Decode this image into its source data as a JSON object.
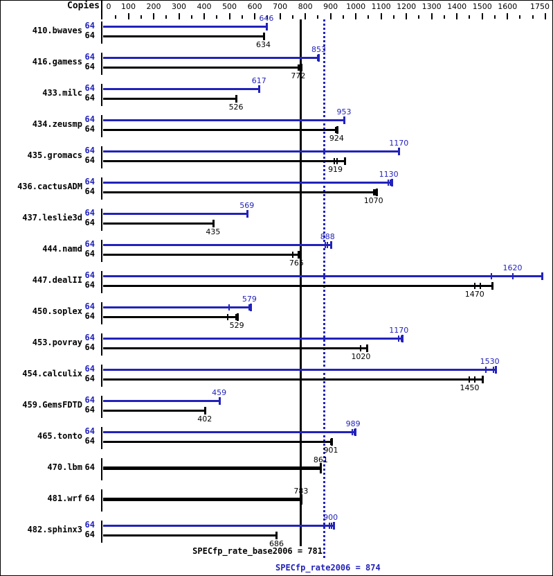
{
  "chart_data": {
    "type": "bar",
    "orientation": "horizontal",
    "axis": {
      "label": "Copies",
      "min": 0,
      "max": 1750,
      "minor_step": 50,
      "major_tick_values": [
        0,
        100,
        200,
        300,
        400,
        500,
        600,
        700,
        800,
        900,
        1000,
        1100,
        1200,
        1300,
        1400,
        1500,
        1600,
        1750
      ]
    },
    "series": [
      {
        "name": "peak",
        "color": "#2222bb"
      },
      {
        "name": "base",
        "color": "#000000"
      }
    ],
    "benchmarks": [
      {
        "name": "410.bwaves",
        "rows": [
          {
            "series": "peak",
            "copies": "64",
            "value": 646,
            "marks": [
              646
            ],
            "end": 646
          },
          {
            "series": "base",
            "copies": "64",
            "value": 634,
            "marks": [
              634
            ],
            "end": 634
          }
        ]
      },
      {
        "name": "416.gamess",
        "rows": [
          {
            "series": "peak",
            "copies": "64",
            "value": 853,
            "marks": [
              849,
              853
            ],
            "end": 853
          },
          {
            "series": "base",
            "copies": "64",
            "value": 772,
            "marks": [
              772,
              779
            ],
            "end": 783
          }
        ]
      },
      {
        "name": "433.milc",
        "rows": [
          {
            "series": "peak",
            "copies": "64",
            "value": 617,
            "marks": [
              617
            ],
            "end": 617
          },
          {
            "series": "base",
            "copies": "64",
            "value": 526,
            "marks": [
              526
            ],
            "end": 526
          }
        ]
      },
      {
        "name": "434.zeusmp",
        "rows": [
          {
            "series": "peak",
            "copies": "64",
            "value": 953,
            "marks": [
              953
            ],
            "end": 953
          },
          {
            "series": "base",
            "copies": "64",
            "value": 924,
            "marks": [
              920,
              924
            ],
            "end": 925
          }
        ]
      },
      {
        "name": "435.gromacs",
        "rows": [
          {
            "series": "peak",
            "copies": "64",
            "value": 1170,
            "marks": [
              1170
            ],
            "end": 1170
          },
          {
            "series": "base",
            "copies": "64",
            "value": 919,
            "marks": [
              916,
              927
            ],
            "end": 955
          }
        ]
      },
      {
        "name": "436.cactusADM",
        "rows": [
          {
            "series": "peak",
            "copies": "64",
            "value": 1130,
            "marks": [
              1128,
              1137
            ],
            "end": 1142
          },
          {
            "series": "base",
            "copies": "64",
            "value": 1070,
            "marks": [
              1070,
              1077
            ],
            "end": 1083
          }
        ]
      },
      {
        "name": "437.leslie3d",
        "rows": [
          {
            "series": "peak",
            "copies": "64",
            "value": 569,
            "marks": [
              569
            ],
            "end": 569
          },
          {
            "series": "base",
            "copies": "64",
            "value": 435,
            "marks": [
              435
            ],
            "end": 435
          }
        ]
      },
      {
        "name": "444.namd",
        "rows": [
          {
            "series": "peak",
            "copies": "64",
            "value": 888,
            "marks": [
              878,
              888
            ],
            "end": 900
          },
          {
            "series": "base",
            "copies": "64",
            "value": 765,
            "marks": [
              750
            ],
            "end": 772
          }
        ]
      },
      {
        "name": "447.dealII",
        "rows": [
          {
            "series": "peak",
            "copies": "64",
            "value": 1620,
            "marks": [
              1537,
              1620
            ],
            "end": 1735
          },
          {
            "series": "base",
            "copies": "64",
            "value": 1470,
            "marks": [
              1470,
              1492
            ],
            "end": 1540
          }
        ]
      },
      {
        "name": "450.soplex",
        "rows": [
          {
            "series": "peak",
            "copies": "64",
            "value": 579,
            "marks": [
              499,
              579
            ],
            "end": 582
          },
          {
            "series": "base",
            "copies": "64",
            "value": 529,
            "marks": [
              492,
              526
            ],
            "end": 530
          }
        ]
      },
      {
        "name": "453.povray",
        "rows": [
          {
            "series": "peak",
            "copies": "64",
            "value": 1170,
            "marks": [
              1170,
              1180
            ],
            "end": 1184
          },
          {
            "series": "base",
            "copies": "64",
            "value": 1020,
            "marks": [
              1020
            ],
            "end": 1044
          }
        ]
      },
      {
        "name": "454.calculix",
        "rows": [
          {
            "series": "peak",
            "copies": "64",
            "value": 1530,
            "marks": [
              1515,
              1545
            ],
            "end": 1553
          },
          {
            "series": "base",
            "copies": "64",
            "value": 1450,
            "marks": [
              1450,
              1472
            ],
            "end": 1500
          }
        ]
      },
      {
        "name": "459.GemsFDTD",
        "rows": [
          {
            "series": "peak",
            "copies": "64",
            "value": 459,
            "marks": [
              459
            ],
            "end": 459
          },
          {
            "series": "base",
            "copies": "64",
            "value": 402,
            "marks": [
              402
            ],
            "end": 402
          }
        ]
      },
      {
        "name": "465.tonto",
        "rows": [
          {
            "series": "peak",
            "copies": "64",
            "value": 989,
            "marks": [
              986,
              994
            ],
            "end": 997
          },
          {
            "series": "base",
            "copies": "64",
            "value": 901,
            "marks": [
              901
            ],
            "end": 904
          }
        ]
      },
      {
        "name": "470.lbm",
        "rows": [
          {
            "series": "base",
            "copies": "64",
            "value": 861,
            "marks": [
              861
            ],
            "end": 861,
            "thick": true
          }
        ]
      },
      {
        "name": "481.wrf",
        "rows": [
          {
            "series": "base",
            "copies": "64",
            "value": 783,
            "marks": [
              783
            ],
            "end": 783,
            "thick": true
          }
        ]
      },
      {
        "name": "482.sphinx3",
        "rows": [
          {
            "series": "peak",
            "copies": "64",
            "value": 900,
            "marks": [
              896,
              905
            ],
            "end": 913
          },
          {
            "series": "base",
            "copies": "64",
            "value": 686,
            "marks": [
              686
            ],
            "end": 686
          }
        ]
      }
    ],
    "reference_lines": [
      {
        "name": "base_result",
        "label": "SPECfp_rate_base2006 = 781",
        "value": 781,
        "style": "solid",
        "color": "#000000"
      },
      {
        "name": "peak_result",
        "label": "SPECfp_rate2006 = 874",
        "value": 874,
        "style": "dotted",
        "color": "#2222bb"
      }
    ]
  }
}
